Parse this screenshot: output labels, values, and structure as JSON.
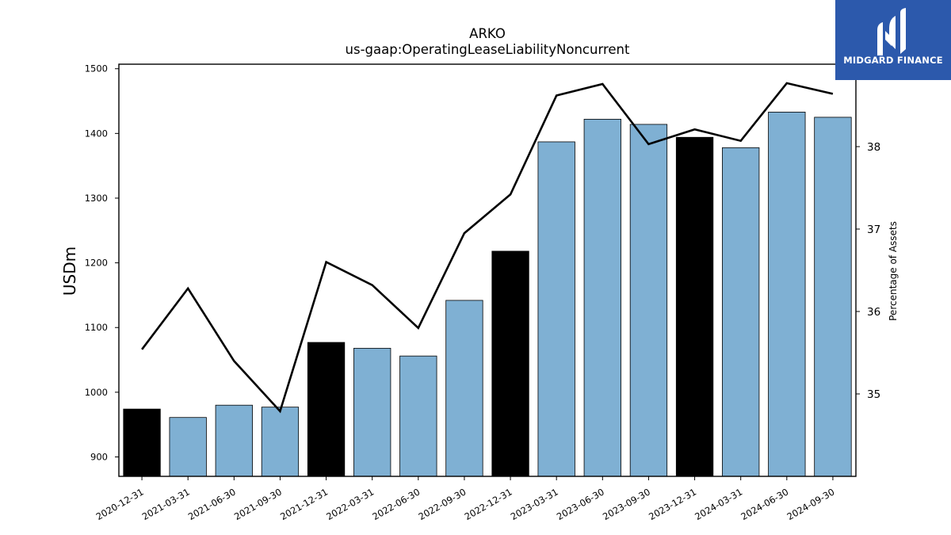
{
  "brand": {
    "name": "MIDGARD FINANCE",
    "color": "#2c59ac"
  },
  "chart_data": {
    "type": "bar",
    "title": "ARKO",
    "subtitle": "us-gaap:OperatingLeaseLiabilityNoncurrent",
    "ylabel": "USDm",
    "y2label": "Percentage of Assets",
    "ylim": [
      870,
      1507
    ],
    "y2lim": [
      34.0,
      39.0
    ],
    "yticks": [
      900,
      1000,
      1100,
      1200,
      1300,
      1400,
      1500
    ],
    "y2ticks": [
      35,
      36,
      37,
      38
    ],
    "categories": [
      "2020-12-31",
      "2021-03-31",
      "2021-06-30",
      "2021-09-30",
      "2021-12-31",
      "2022-03-31",
      "2022-06-30",
      "2022-09-30",
      "2022-12-31",
      "2023-03-31",
      "2023-06-30",
      "2023-09-30",
      "2023-12-31",
      "2024-03-31",
      "2024-06-30",
      "2024-09-30"
    ],
    "series": [
      {
        "axis": "left",
        "kind": "bar",
        "values": [
          974,
          961,
          980,
          977,
          1077,
          1068,
          1056,
          1142,
          1218,
          1387,
          1422,
          1414,
          1394,
          1378,
          1433,
          1425
        ],
        "colors": [
          "#000000",
          "#7fb0d3",
          "#7fb0d3",
          "#7fb0d3",
          "#000000",
          "#7fb0d3",
          "#7fb0d3",
          "#7fb0d3",
          "#000000",
          "#7fb0d3",
          "#7fb0d3",
          "#7fb0d3",
          "#000000",
          "#7fb0d3",
          "#7fb0d3",
          "#7fb0d3"
        ]
      },
      {
        "axis": "right",
        "kind": "line",
        "color": "#000000",
        "values": [
          35.54,
          36.28,
          35.4,
          34.79,
          36.6,
          36.32,
          35.8,
          36.95,
          37.42,
          38.62,
          38.76,
          38.03,
          38.21,
          38.07,
          38.77,
          38.64
        ]
      }
    ],
    "grid": false
  }
}
